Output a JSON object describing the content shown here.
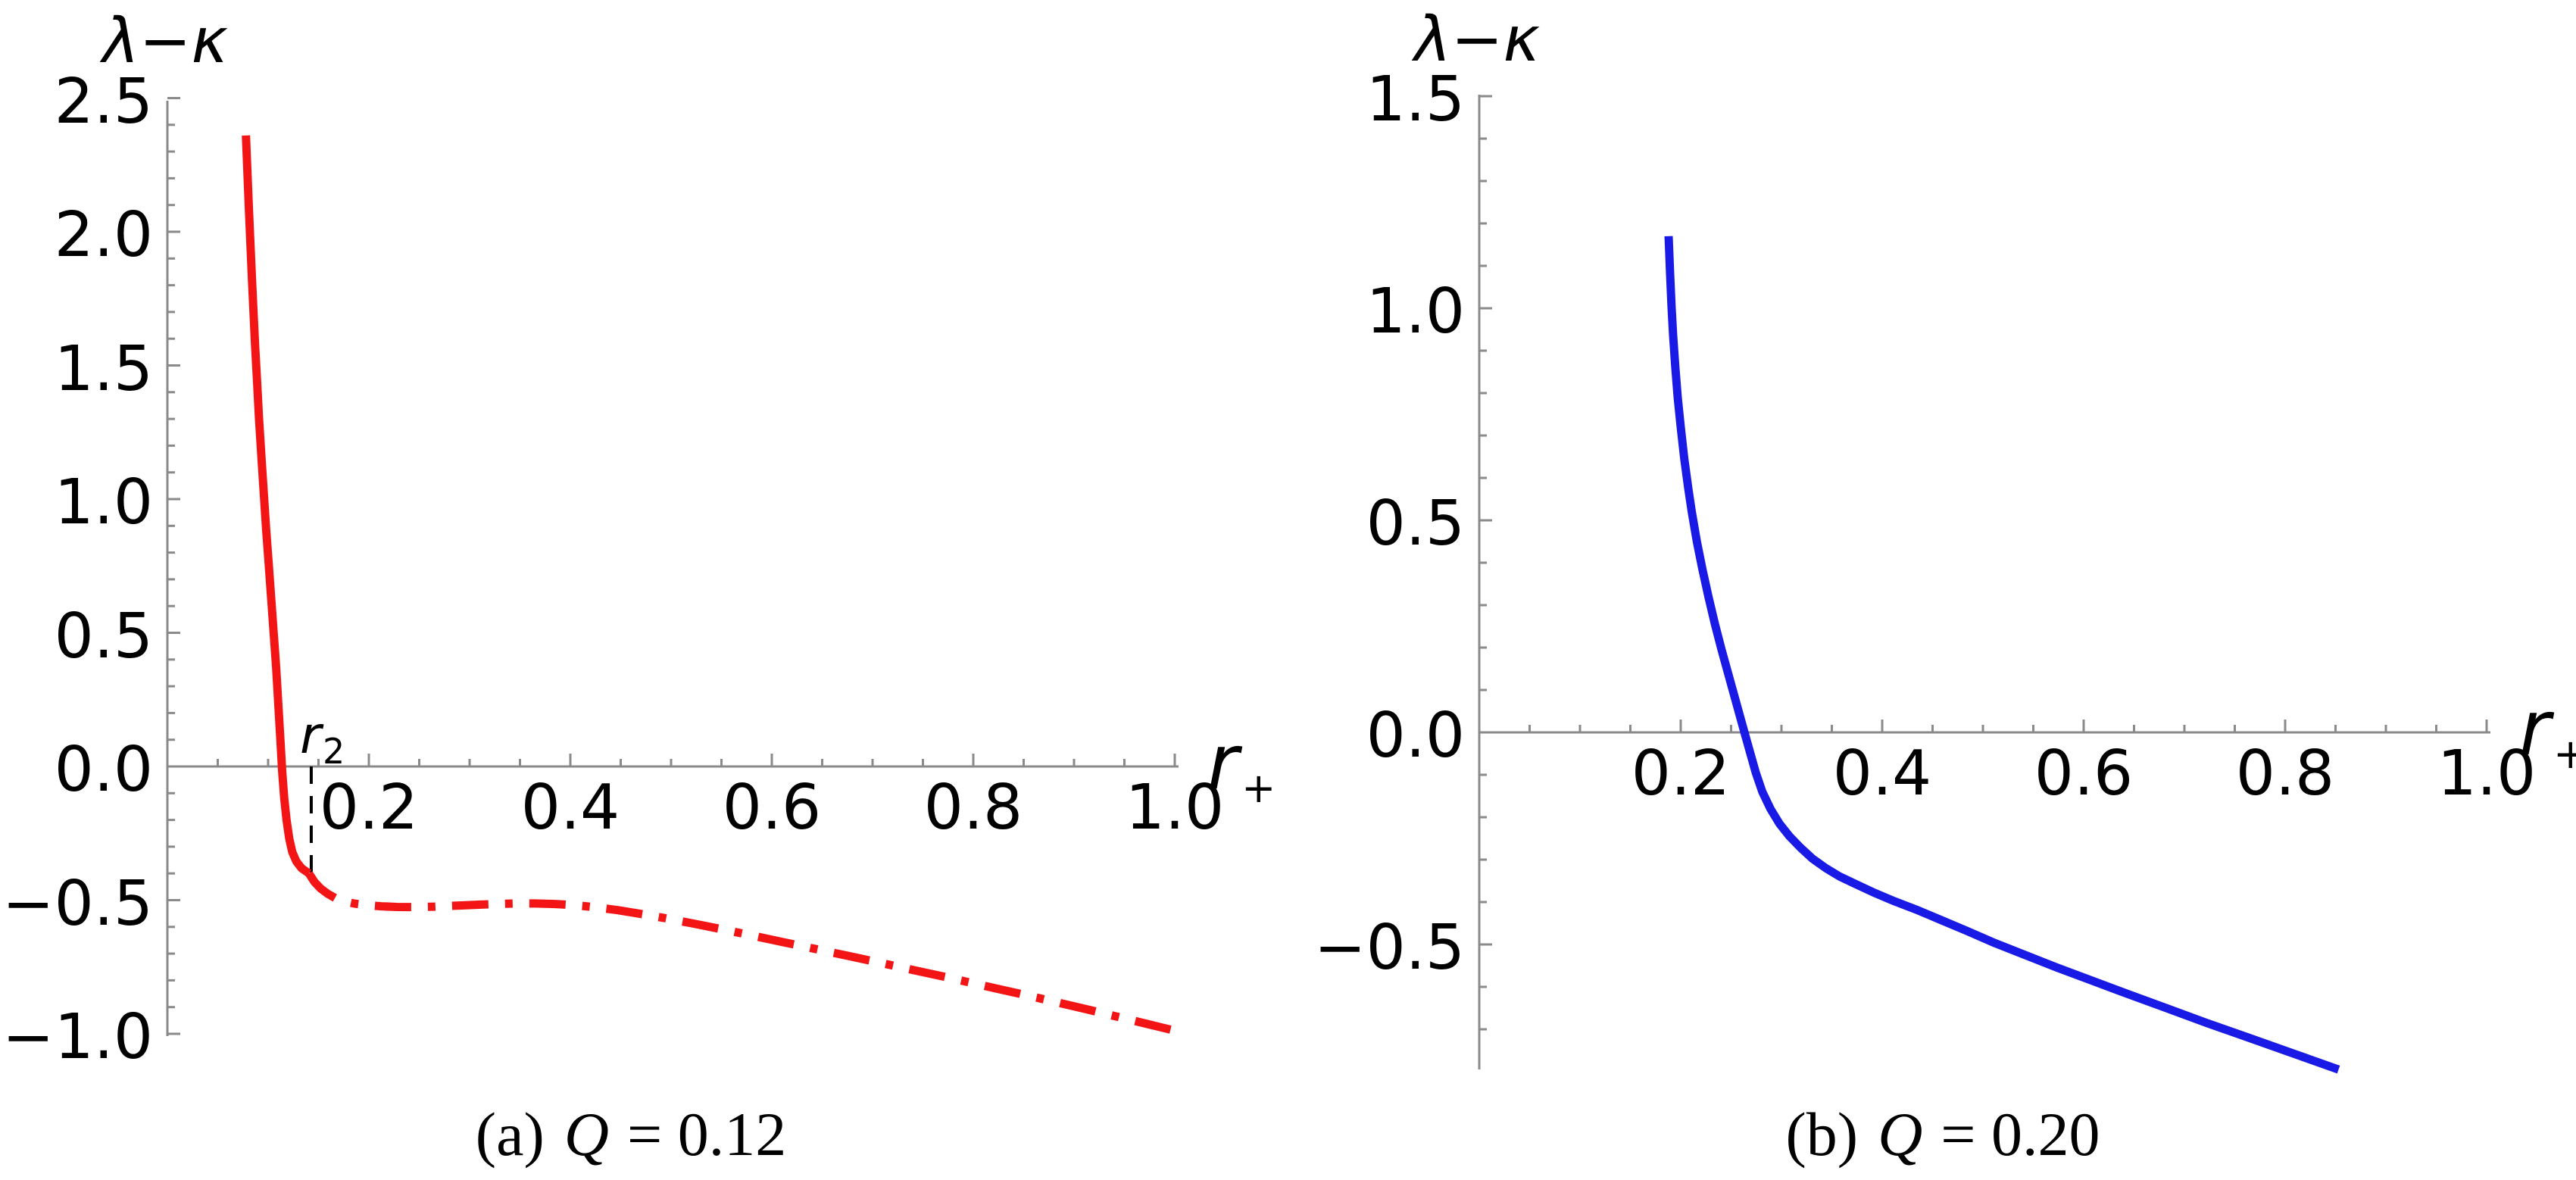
{
  "figure": {
    "background": "#FFFFFF"
  },
  "chart_data": [
    {
      "type": "line",
      "panel": "a",
      "caption": {
        "index": "(a)",
        "symbol": "Q",
        "value": "= 0.12"
      },
      "ylabel": "λ−κ",
      "xlabel": {
        "base": "r",
        "subscript": "+"
      },
      "axis_color": "#8A8A8A",
      "text_color": "#000000",
      "accent_color": "#F31515",
      "xlim": [
        0,
        1.004
      ],
      "ylim": [
        -1.008,
        2.49
      ],
      "x_ticks": [
        0.2,
        0.4,
        0.6,
        0.8,
        1.0
      ],
      "x_tick_labels": [
        "0.2",
        "0.4",
        "0.6",
        "0.8",
        "1.0"
      ],
      "x_minor_step": 0.05,
      "y_ticks": [
        2.5,
        2.0,
        1.5,
        1.0,
        0.5,
        0.0,
        -0.5,
        -1.0
      ],
      "y_tick_labels": [
        "2.5",
        "2.0",
        "1.5",
        "1.0",
        "0.5",
        "0.0",
        "−0.5",
        "−1.0"
      ],
      "y_minor_step": 0.1,
      "grid": false,
      "legend": false,
      "series": [
        {
          "name": "lambda-minus-kappa-solid-branch",
          "style": "solid",
          "color": "#F31515",
          "width": 11,
          "points": [
            [
              0.078,
              2.36
            ],
            [
              0.0795,
              2.22
            ],
            [
              0.081,
              2.08
            ],
            [
              0.0825,
              1.95
            ],
            [
              0.084,
              1.82
            ],
            [
              0.0855,
              1.7
            ],
            [
              0.087,
              1.58
            ],
            [
              0.089,
              1.44
            ],
            [
              0.091,
              1.3
            ],
            [
              0.0933,
              1.16
            ],
            [
              0.0957,
              1.02
            ],
            [
              0.098,
              0.89
            ],
            [
              0.1005,
              0.76
            ],
            [
              0.103,
              0.63
            ],
            [
              0.1055,
              0.5
            ],
            [
              0.108,
              0.37
            ],
            [
              0.1103,
              0.22
            ],
            [
              0.1125,
              0.08
            ],
            [
              0.114,
              -0.02
            ],
            [
              0.116,
              -0.12
            ],
            [
              0.1183,
              -0.2
            ],
            [
              0.121,
              -0.27
            ],
            [
              0.124,
              -0.32
            ],
            [
              0.128,
              -0.355
            ],
            [
              0.133,
              -0.38
            ],
            [
              0.1405,
              -0.4
            ]
          ]
        },
        {
          "name": "lambda-minus-kappa-dashdot-branch",
          "style": "dash-dot",
          "color": "#F31515",
          "width": 11,
          "points": [
            [
              0.1405,
              -0.4
            ],
            [
              0.146,
              -0.432
            ],
            [
              0.152,
              -0.456
            ],
            [
              0.159,
              -0.476
            ],
            [
              0.167,
              -0.493
            ],
            [
              0.176,
              -0.505
            ],
            [
              0.186,
              -0.513
            ],
            [
              0.198,
              -0.519
            ],
            [
              0.212,
              -0.523
            ],
            [
              0.228,
              -0.5255
            ],
            [
              0.246,
              -0.526
            ],
            [
              0.265,
              -0.5245
            ],
            [
              0.285,
              -0.521
            ],
            [
              0.305,
              -0.5175
            ],
            [
              0.325,
              -0.5145
            ],
            [
              0.345,
              -0.5125
            ],
            [
              0.365,
              -0.5125
            ],
            [
              0.385,
              -0.5145
            ],
            [
              0.405,
              -0.519
            ],
            [
              0.425,
              -0.5265
            ],
            [
              0.447,
              -0.5375
            ],
            [
              0.47,
              -0.5515
            ],
            [
              0.495,
              -0.568
            ],
            [
              0.522,
              -0.5875
            ],
            [
              0.55,
              -0.6085
            ],
            [
              0.58,
              -0.632
            ],
            [
              0.61,
              -0.656
            ],
            [
              0.642,
              -0.6815
            ],
            [
              0.675,
              -0.708
            ],
            [
              0.708,
              -0.7345
            ],
            [
              0.742,
              -0.7625
            ],
            [
              0.776,
              -0.7905
            ],
            [
              0.81,
              -0.8195
            ],
            [
              0.845,
              -0.849
            ],
            [
              0.88,
              -0.8795
            ],
            [
              0.915,
              -0.9105
            ],
            [
              0.95,
              -0.9425
            ],
            [
              0.977,
              -0.967
            ],
            [
              1.0,
              -0.988
            ]
          ]
        }
      ],
      "annotation": {
        "base": "r",
        "sub": "2",
        "x": 0.1428,
        "y_from": 0.0,
        "y_to": -0.4,
        "style": "dashed",
        "color": "#000000"
      }
    },
    {
      "type": "line",
      "panel": "b",
      "caption": {
        "index": "(b)",
        "symbol": "Q",
        "value": "= 0.20"
      },
      "ylabel": "λ−κ",
      "xlabel": {
        "base": "r",
        "subscript": "+"
      },
      "axis_color": "#8A8A8A",
      "text_color": "#000000",
      "accent_color": "#1A1AE6",
      "xlim": [
        0,
        1.004
      ],
      "ylim": [
        -0.795,
        1.504
      ],
      "x_ticks": [
        0.2,
        0.4,
        0.6,
        0.8,
        1.0
      ],
      "x_tick_labels": [
        "0.2",
        "0.4",
        "0.6",
        "0.8",
        "1.0"
      ],
      "x_minor_step": 0.05,
      "y_ticks": [
        1.5,
        1.0,
        0.5,
        0.0,
        -0.5
      ],
      "y_tick_labels": [
        "1.5",
        "1.0",
        "0.5",
        "0.0",
        "−0.5"
      ],
      "y_minor_step": 0.1,
      "grid": false,
      "legend": false,
      "series": [
        {
          "name": "lambda-minus-kappa-curve",
          "style": "solid",
          "color": "#1A1AE6",
          "width": 11,
          "points": [
            [
              0.188,
              1.17
            ],
            [
              0.1895,
              1.08
            ],
            [
              0.191,
              1.0
            ],
            [
              0.1925,
              0.935
            ],
            [
              0.1945,
              0.865
            ],
            [
              0.197,
              0.79
            ],
            [
              0.2,
              0.72
            ],
            [
              0.2035,
              0.645
            ],
            [
              0.2075,
              0.575
            ],
            [
              0.211,
              0.52
            ],
            [
              0.216,
              0.45
            ],
            [
              0.2215,
              0.385
            ],
            [
              0.2275,
              0.32
            ],
            [
              0.234,
              0.255
            ],
            [
              0.2405,
              0.195
            ],
            [
              0.2475,
              0.135
            ],
            [
              0.2545,
              0.075
            ],
            [
              0.2615,
              0.015
            ],
            [
              0.268,
              -0.04
            ],
            [
              0.2745,
              -0.095
            ],
            [
              0.281,
              -0.14
            ],
            [
              0.289,
              -0.18
            ],
            [
              0.298,
              -0.215
            ],
            [
              0.308,
              -0.245
            ],
            [
              0.319,
              -0.272
            ],
            [
              0.331,
              -0.298
            ],
            [
              0.344,
              -0.32
            ],
            [
              0.358,
              -0.34
            ],
            [
              0.374,
              -0.358
            ],
            [
              0.392,
              -0.378
            ],
            [
              0.412,
              -0.398
            ],
            [
              0.434,
              -0.418
            ],
            [
              0.458,
              -0.442
            ],
            [
              0.484,
              -0.468
            ],
            [
              0.512,
              -0.497
            ],
            [
              0.542,
              -0.525
            ],
            [
              0.574,
              -0.555
            ],
            [
              0.608,
              -0.585
            ],
            [
              0.644,
              -0.617
            ],
            [
              0.682,
              -0.65
            ],
            [
              0.722,
              -0.685
            ],
            [
              0.764,
              -0.72
            ],
            [
              0.808,
              -0.757
            ],
            [
              0.853,
              -0.795
            ]
          ]
        }
      ],
      "annotation": null
    }
  ]
}
